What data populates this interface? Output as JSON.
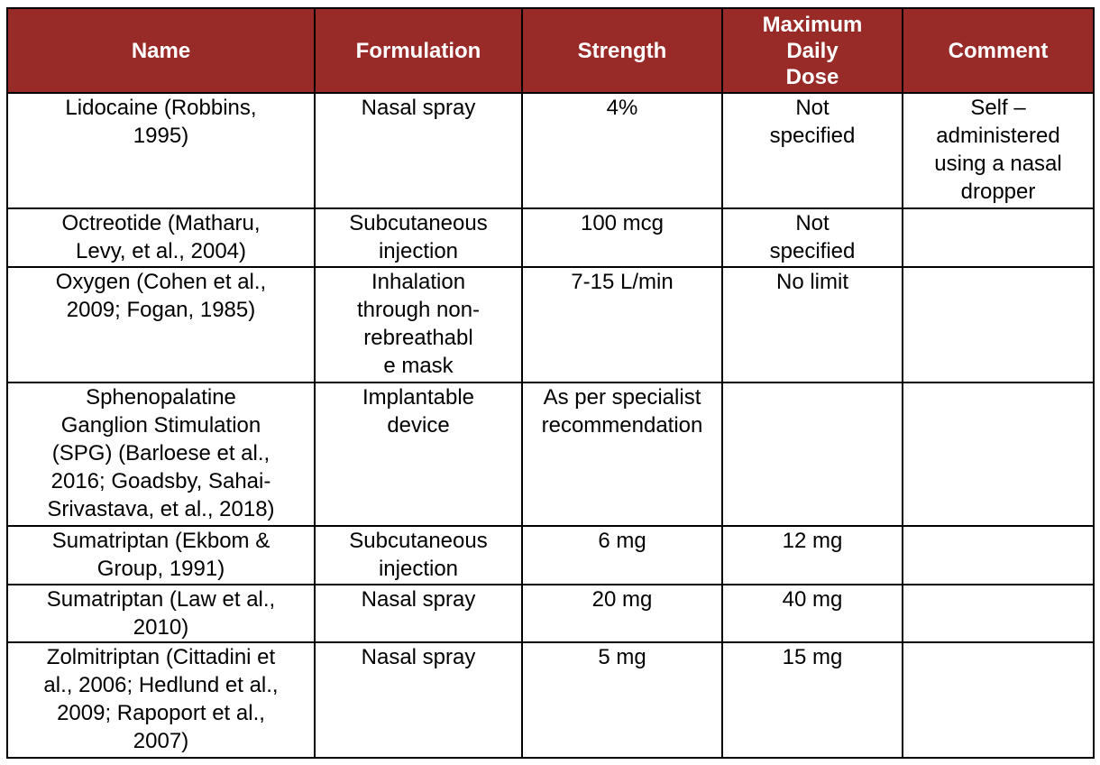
{
  "header": {
    "accent_color": "#982a28",
    "columns": [
      "Name",
      "Formulation",
      "Strength",
      "Maximum\nDaily\nDose",
      "Comment"
    ]
  },
  "rows": [
    [
      "Lidocaine (Robbins,\n1995)",
      "Nasal spray",
      "4%",
      "Not\nspecified",
      "Self –\nadministered\nusing a nasal\ndropper"
    ],
    [
      "Octreotide (Matharu,\nLevy, et al., 2004)",
      "Subcutaneous\ninjection",
      "100 mcg",
      "Not\nspecified",
      ""
    ],
    [
      "Oxygen (Cohen et al.,\n2009; Fogan, 1985)",
      "Inhalation\nthrough non-\nrebreathabl\ne mask",
      "7-15 L/min",
      "No limit",
      ""
    ],
    [
      "Sphenopalatine\nGanglion Stimulation\n(SPG) (Barloese et al.,\n2016; Goadsby, Sahai-\nSrivastava, et al., 2018)",
      "Implantable\ndevice",
      "As per specialist\nrecommendation",
      "",
      ""
    ],
    [
      "Sumatriptan (Ekbom &\nGroup, 1991)",
      "Subcutaneous\ninjection",
      "6 mg",
      "12 mg",
      ""
    ],
    [
      "Sumatriptan (Law et al.,\n2010)",
      "Nasal spray",
      "20 mg",
      "40 mg",
      ""
    ],
    [
      "Zolmitriptan (Cittadini et\nal., 2006; Hedlund et al.,\n2009; Rapoport et al.,\n2007)",
      "Nasal spray",
      "5 mg",
      "15 mg",
      ""
    ]
  ]
}
